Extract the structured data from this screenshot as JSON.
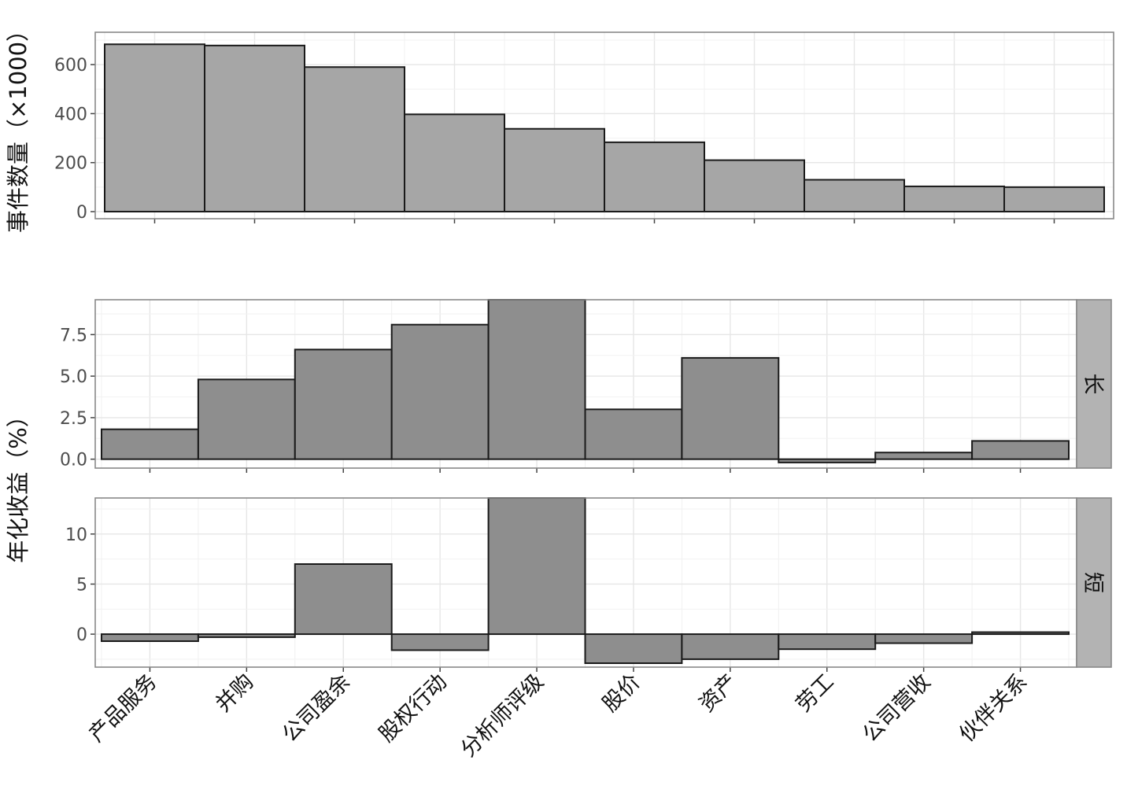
{
  "chart_data": [
    {
      "type": "bar",
      "ylabel": "事件数量（×1000）",
      "ylim": [
        0,
        700
      ],
      "yticks": [
        0,
        200,
        400,
        600
      ],
      "categories": [
        "产品服务",
        "并购",
        "公司盈余",
        "股权行动",
        "分析师评级",
        "股价",
        "资产",
        "劳工",
        "公司营收",
        "伙伴关系"
      ],
      "values": [
        683,
        678,
        590,
        397,
        338,
        283,
        210,
        130,
        103,
        100
      ],
      "grid": true
    },
    {
      "type": "bar",
      "facet_label": "长",
      "ylim": [
        -0.3,
        9.6
      ],
      "yticks": [
        0.0,
        2.5,
        5.0,
        7.5
      ],
      "ytick_labels": [
        "0.0",
        "2.5",
        "5.0",
        "7.5"
      ],
      "categories": [
        "产品服务",
        "并购",
        "公司盈余",
        "股权行动",
        "分析师评级",
        "股价",
        "资产",
        "劳工",
        "公司营收",
        "伙伴关系"
      ],
      "values": [
        1.8,
        4.8,
        6.6,
        8.1,
        9.6,
        3.0,
        6.1,
        -0.2,
        0.4,
        1.1
      ],
      "grid": true
    },
    {
      "type": "bar",
      "facet_label": "短",
      "ylim": [
        -2.9,
        13.6
      ],
      "yticks": [
        0,
        5,
        10
      ],
      "categories": [
        "产品服务",
        "并购",
        "公司盈余",
        "股权行动",
        "分析师评级",
        "股价",
        "资产",
        "劳工",
        "公司营收",
        "伙伴关系"
      ],
      "values": [
        -0.7,
        -0.3,
        7.0,
        -1.6,
        13.6,
        -2.9,
        -2.5,
        -1.5,
        -0.9,
        0.2
      ],
      "grid": true
    }
  ],
  "shared_ylabel_bottom": "年化收益（%）",
  "colors": {
    "bar_top": "#a6a6a6",
    "bar_bottom": "#8e8e8e",
    "strip": "#b3b3b3",
    "grid": "#e6e6e6",
    "panel_border": "#888888"
  }
}
